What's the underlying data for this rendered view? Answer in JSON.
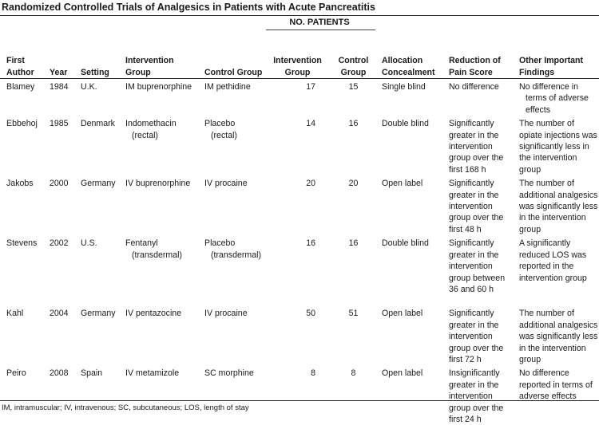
{
  "title": "Randomized Controlled Trials of Analgesics in Patients with Acute Pancreatitis",
  "group_header": "NO. PATIENTS",
  "columns": [
    "First Author",
    "Year",
    "Setting",
    "Intervention Group",
    "Control Group",
    "Intervention Group",
    "Control Group",
    "Allocation Concealment",
    "Reduction of Pain Score",
    "Other Important Findings"
  ],
  "rows": [
    [
      "Blamey",
      "1984",
      "U.K.",
      "IM buprenorphine",
      "IM pethidine",
      "17",
      "15",
      "Single blind",
      "No difference",
      "No difference in terms of adverse effects"
    ],
    [
      "Ebbehoj",
      "1985",
      "Denmark",
      "Indomethacin (rectal)",
      "Placebo (rectal)",
      "14",
      "16",
      "Double blind",
      "Significantly greater in the intervention group over the first 168 h",
      "The number of opiate injections was significantly less in the intervention group"
    ],
    [
      "Jakobs",
      "2000",
      "Germany",
      "IV buprenorphine",
      "IV procaine",
      "20",
      "20",
      "Open label",
      "Significantly greater in the intervention group over the first 48 h",
      "The number of additional analgesics was significantly less in the intervention group"
    ],
    [
      "Stevens",
      "2002",
      "U.S.",
      "Fentanyl (transdermal)",
      "Placebo (transdermal)",
      "16",
      "16",
      "Double blind",
      "Significantly greater in the intervention group between 36 and 60 h",
      "A significantly reduced LOS was reported in the intervention group"
    ],
    [
      "Kahl",
      "2004",
      "Germany",
      "IV pentazocine",
      "IV procaine",
      "50",
      "51",
      "Open label",
      "Significantly greater in the intervention group over the first 72 h",
      "The number of additional analgesics was significantly less in the intervention group"
    ],
    [
      "Peiro",
      "2008",
      "Spain",
      "IV metamizole",
      "SC morphine",
      "8",
      "8",
      "Open label",
      "Insignificantly greater in the intervention group over the first 24 h",
      "No difference reported in terms of adverse effects"
    ]
  ],
  "footnote": "IM, intramuscular; IV, intravenous; SC, subcutaneous; LOS, length of stay"
}
